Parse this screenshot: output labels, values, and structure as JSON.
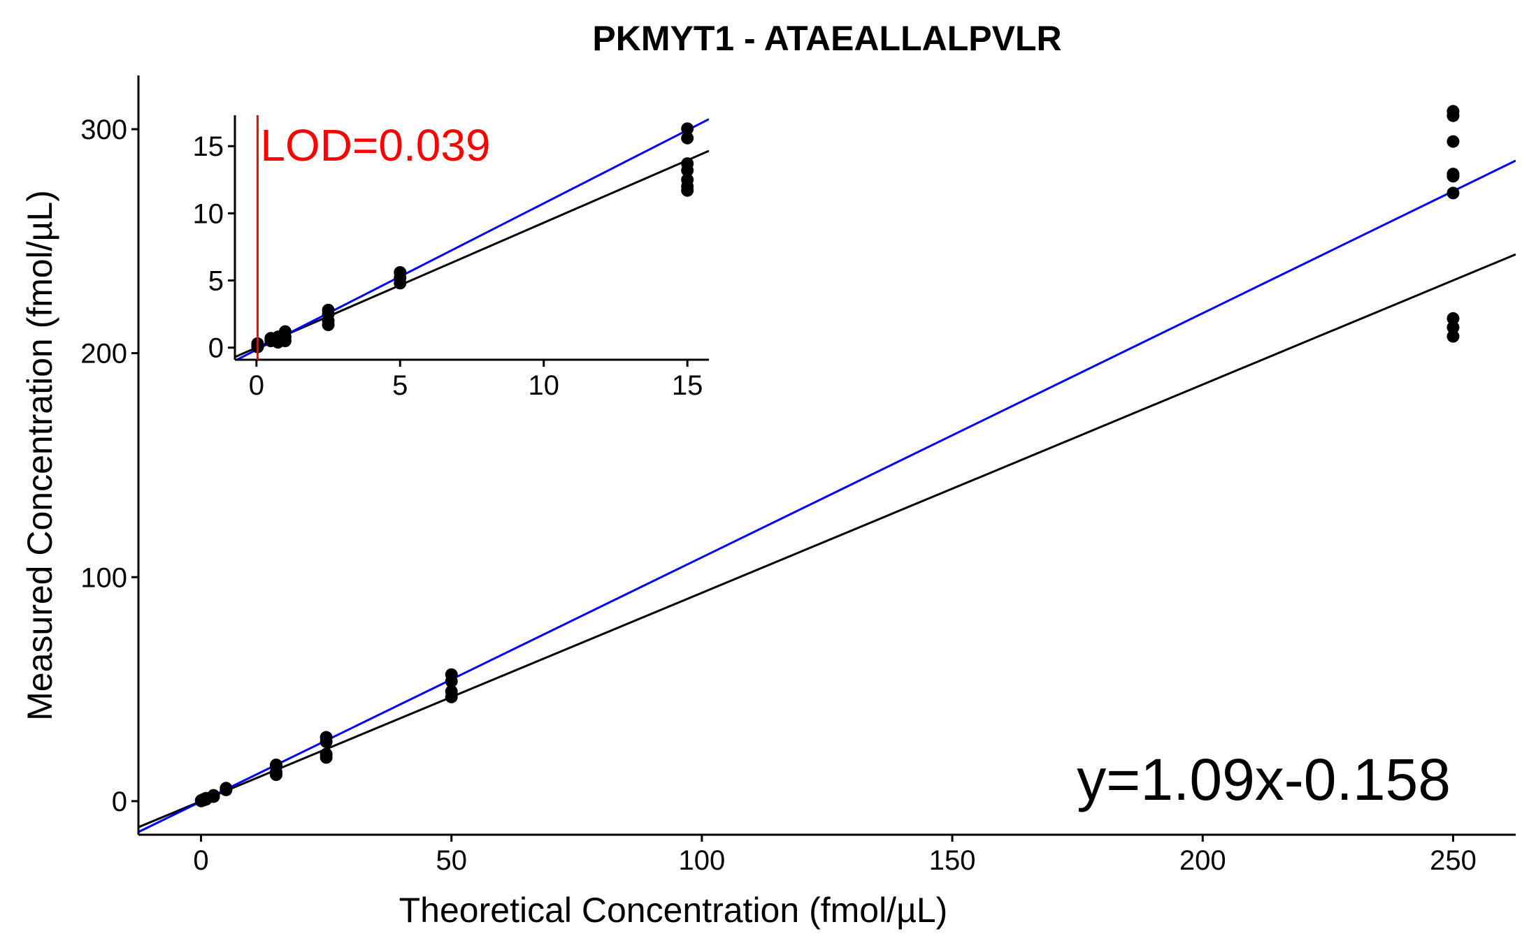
{
  "chart_data": {
    "type": "scatter",
    "title": "PKMYT1 - ATAEALLALPVLR",
    "xlabel": "Theoretical Concentration (fmol/µL)",
    "ylabel": "Measured Concentration (fmol/µL)",
    "xlim": [
      -12.5,
      262.5
    ],
    "ylim": [
      -15,
      324
    ],
    "xticks": [
      0,
      50,
      100,
      150,
      200,
      250
    ],
    "yticks": [
      0,
      100,
      200,
      300
    ],
    "grid": false,
    "colors": {
      "points": "#000000",
      "fit_line": "#0000ff",
      "identity_line": "#000000",
      "lod": "#ff0000"
    },
    "points": [
      {
        "x": 0.039,
        "y": 0.05
      },
      {
        "x": 0.039,
        "y": 0.2
      },
      {
        "x": 0.039,
        "y": 0.3
      },
      {
        "x": 0.5,
        "y": 0.4
      },
      {
        "x": 0.5,
        "y": 0.6
      },
      {
        "x": 0.5,
        "y": 0.8
      },
      {
        "x": 1,
        "y": 0.8
      },
      {
        "x": 1,
        "y": 1.0
      },
      {
        "x": 1,
        "y": 1.3
      },
      {
        "x": 2.5,
        "y": 2.0
      },
      {
        "x": 2.5,
        "y": 2.3
      },
      {
        "x": 2.5,
        "y": 2.6
      },
      {
        "x": 5,
        "y": 5.0
      },
      {
        "x": 5,
        "y": 5.4
      },
      {
        "x": 5,
        "y": 5.8
      },
      {
        "x": 15,
        "y": 11.8
      },
      {
        "x": 15,
        "y": 13.0
      },
      {
        "x": 15,
        "y": 15.5
      },
      {
        "x": 15,
        "y": 16.2
      },
      {
        "x": 25,
        "y": 19.5
      },
      {
        "x": 25,
        "y": 21.0
      },
      {
        "x": 25,
        "y": 26.5
      },
      {
        "x": 25,
        "y": 28.5
      },
      {
        "x": 50,
        "y": 46.5
      },
      {
        "x": 50,
        "y": 49.0
      },
      {
        "x": 50,
        "y": 53.5
      },
      {
        "x": 50,
        "y": 56.5
      },
      {
        "x": 250,
        "y": 207.5
      },
      {
        "x": 250,
        "y": 211.5
      },
      {
        "x": 250,
        "y": 215.5
      },
      {
        "x": 250,
        "y": 271.5
      },
      {
        "x": 250,
        "y": 279.0
      },
      {
        "x": 250,
        "y": 280.0
      },
      {
        "x": 250,
        "y": 294.5
      },
      {
        "x": 250,
        "y": 306.0
      },
      {
        "x": 250,
        "y": 308.0
      }
    ],
    "fit_line": {
      "slope": 1.09,
      "intercept": -0.158
    },
    "identity_line": {
      "slope": 0.93,
      "intercept": 0
    },
    "equation_label": "y=1.09x-0.158",
    "inset": {
      "xlim": [
        -0.75,
        15.75
      ],
      "ylim": [
        -0.9,
        17.3
      ],
      "xticks": [
        0,
        5,
        10,
        15
      ],
      "yticks": [
        0,
        5,
        10,
        15
      ],
      "points": [
        {
          "x": 0.039,
          "y": 0.05
        },
        {
          "x": 0.039,
          "y": 0.2
        },
        {
          "x": 0.039,
          "y": 0.3
        },
        {
          "x": 0.5,
          "y": 0.5
        },
        {
          "x": 0.5,
          "y": 0.6
        },
        {
          "x": 0.5,
          "y": 0.7
        },
        {
          "x": 0.75,
          "y": 0.4
        },
        {
          "x": 0.75,
          "y": 0.6
        },
        {
          "x": 0.75,
          "y": 0.8
        },
        {
          "x": 1,
          "y": 0.5
        },
        {
          "x": 1,
          "y": 0.8
        },
        {
          "x": 1,
          "y": 1.2
        },
        {
          "x": 2.5,
          "y": 1.7
        },
        {
          "x": 2.5,
          "y": 2.0
        },
        {
          "x": 2.5,
          "y": 2.5
        },
        {
          "x": 2.5,
          "y": 2.8
        },
        {
          "x": 5,
          "y": 4.8
        },
        {
          "x": 5,
          "y": 5.2
        },
        {
          "x": 5,
          "y": 5.6
        },
        {
          "x": 15,
          "y": 11.7
        },
        {
          "x": 15,
          "y": 12.0
        },
        {
          "x": 15,
          "y": 12.5
        },
        {
          "x": 15,
          "y": 13.2
        },
        {
          "x": 15,
          "y": 13.7
        },
        {
          "x": 15,
          "y": 15.6
        },
        {
          "x": 15,
          "y": 16.3
        }
      ],
      "lod_value": 0.039,
      "lod_label": "LOD=0.039"
    }
  }
}
